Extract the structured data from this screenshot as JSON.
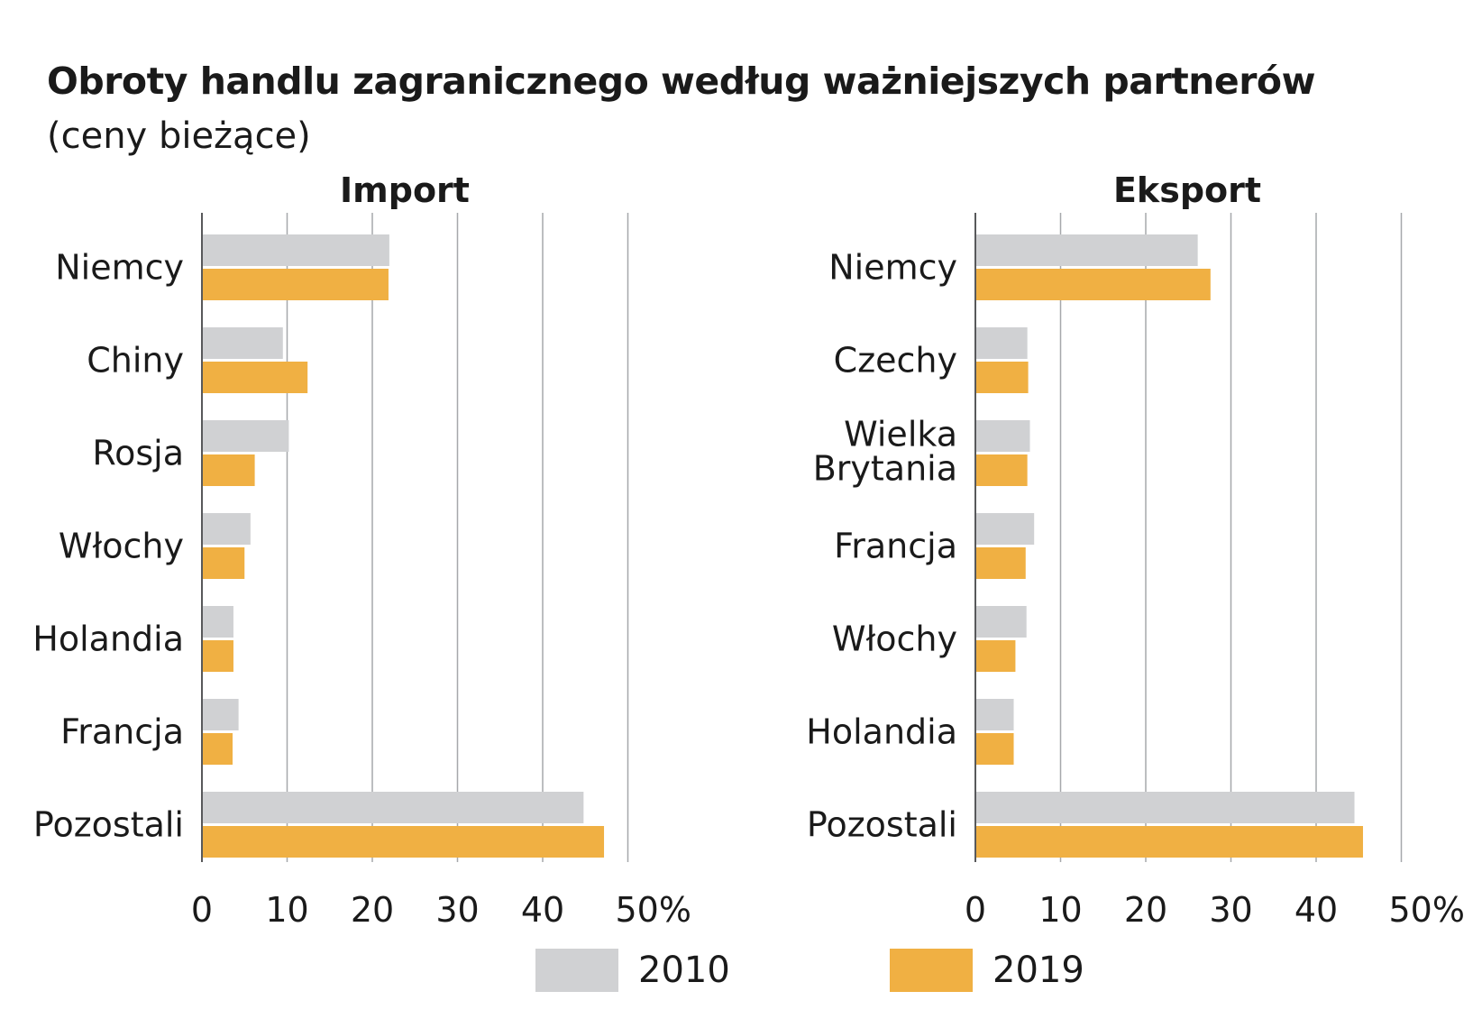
{
  "title": "Obroty handlu zagranicznego według ważniejszych partnerów",
  "subtitle": "(ceny bieżące)",
  "colors": {
    "y2010": "#d0d1d3",
    "y2019": "#f0b043",
    "grid": "#a6a8ab",
    "text": "#1a1a1a"
  },
  "legend": [
    {
      "label": "2010",
      "color": "#d0d1d3"
    },
    {
      "label": "2019",
      "color": "#f0b043"
    }
  ],
  "chart_data": [
    {
      "type": "bar",
      "orientation": "horizontal",
      "title": "Import",
      "categories": [
        "Niemcy",
        "Chiny",
        "Rosja",
        "Włochy",
        "Holandia",
        "Francja",
        "Pozostali"
      ],
      "series": [
        {
          "name": "2010",
          "values": [
            22.0,
            9.5,
            10.2,
            5.7,
            3.7,
            4.3,
            44.8
          ]
        },
        {
          "name": "2019",
          "values": [
            21.9,
            12.4,
            6.2,
            5.0,
            3.7,
            3.6,
            47.2
          ]
        }
      ],
      "xlim": [
        0,
        50
      ],
      "xticks": [
        "0",
        "10",
        "20",
        "30",
        "40",
        "50%"
      ],
      "grid": true
    },
    {
      "type": "bar",
      "orientation": "horizontal",
      "title": "Eksport",
      "categories": [
        "Niemcy",
        "Czechy",
        "Wielka Brytania",
        "Francja",
        "Włochy",
        "Holandia",
        "Pozostali"
      ],
      "series": [
        {
          "name": "2010",
          "values": [
            26.1,
            6.1,
            6.4,
            6.9,
            6.0,
            4.5,
            44.5
          ]
        },
        {
          "name": "2019",
          "values": [
            27.6,
            6.2,
            6.1,
            5.9,
            4.7,
            4.5,
            45.5
          ]
        }
      ],
      "xlim": [
        0,
        50
      ],
      "xticks": [
        "0",
        "10",
        "20",
        "30",
        "40",
        "50%"
      ],
      "grid": true
    }
  ]
}
